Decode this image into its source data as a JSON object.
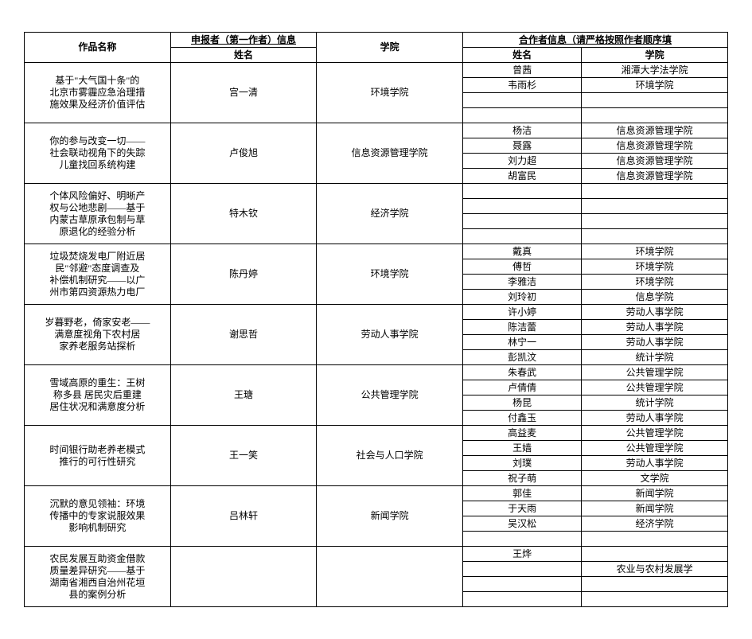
{
  "headers": {
    "work_title": "作品名称",
    "applicant_label": "申报者（第一作者）信息",
    "applicant_name": "姓名",
    "college": "学院",
    "collab_label": "合作者信息（请严格按照作者顺序填",
    "collab_name": "姓名",
    "collab_college": "学院"
  },
  "rows": [
    {
      "title_lines": [
        "基于\"大气国十条\"的",
        "北京市雾霾应急治理措",
        "施效果及经济价值评估"
      ],
      "applicant": "宫一清",
      "college": "环境学院",
      "collaborators": [
        {
          "name": "曾茜",
          "college": "湘潭大学法学院"
        },
        {
          "name": "韦雨杉",
          "college": "环境学院"
        },
        {
          "name": "",
          "college": ""
        },
        {
          "name": "",
          "college": ""
        }
      ]
    },
    {
      "title_lines": [
        "你的参与改变一切——",
        "社会联动视角下的失踪",
        "儿童找回系统构建"
      ],
      "applicant": "卢俊旭",
      "college": "信息资源管理学院",
      "collaborators": [
        {
          "name": "杨洁",
          "college": "信息资源管理学院"
        },
        {
          "name": "聂露",
          "college": "信息资源管理学院"
        },
        {
          "name": "刘力超",
          "college": "信息资源管理学院"
        },
        {
          "name": "胡富民",
          "college": "信息资源管理学院"
        }
      ]
    },
    {
      "title_lines": [
        "个体风险偏好、明晰产",
        "权与公地悲剧——基于",
        "内蒙古草原承包制与草",
        "原退化的经验分析"
      ],
      "applicant": "特木钦",
      "college": "经济学院",
      "collaborators": [
        {
          "name": "",
          "college": ""
        },
        {
          "name": "",
          "college": ""
        },
        {
          "name": "",
          "college": ""
        },
        {
          "name": "",
          "college": ""
        }
      ]
    },
    {
      "title_lines": [
        "垃圾焚烧发电厂附近居",
        "民\"邻避\"态度调查及",
        "补偿机制研究——以广",
        "州市第四资源热力电厂"
      ],
      "applicant": "陈丹婷",
      "college": "环境学院",
      "collaborators": [
        {
          "name": "戴真",
          "college": "环境学院"
        },
        {
          "name": "傅哲",
          "college": "环境学院"
        },
        {
          "name": "李雅洁",
          "college": "环境学院"
        },
        {
          "name": "刘玲初",
          "college": "信息学院"
        }
      ]
    },
    {
      "title_lines": [
        "岁暮野老，倚家安老——",
        "满意度视角下农村居",
        "家养老服务站探析"
      ],
      "applicant": "谢思哲",
      "college": "劳动人事学院",
      "collaborators": [
        {
          "name": "许小婷",
          "college": "劳动人事学院"
        },
        {
          "name": "陈洁蕾",
          "college": "劳动人事学院"
        },
        {
          "name": "林宁一",
          "college": "劳动人事学院"
        },
        {
          "name": "彭凯汶",
          "college": "统计学院"
        }
      ]
    },
    {
      "title_lines": [
        "雪域高原的重生：王树",
        "称多县 居民灾后重建",
        "居住状况和满意度分析"
      ],
      "applicant": "王瑭",
      "college": "公共管理学院",
      "collaborators": [
        {
          "name": "朱春武",
          "college": "公共管理学院"
        },
        {
          "name": "卢倩倩",
          "college": "公共管理学院"
        },
        {
          "name": "杨昆",
          "college": "统计学院"
        },
        {
          "name": "付鑫玉",
          "college": "劳动人事学院"
        }
      ]
    },
    {
      "title_lines": [
        "时间银行助老养老模式",
        "推行的可行性研究"
      ],
      "applicant": "王一笑",
      "college": "社会与人口学院",
      "collaborators": [
        {
          "name": "高益麦",
          "college": "公共管理学院"
        },
        {
          "name": "王嫱",
          "college": "公共管理学院"
        },
        {
          "name": "刘璞",
          "college": "劳动人事学院"
        },
        {
          "name": "祝子萌",
          "college": "文学院"
        }
      ]
    },
    {
      "title_lines": [
        "沉默的意见领袖：环境",
        "传播中的专家说服效果",
        "影响机制研究"
      ],
      "applicant": "吕林轩",
      "college": "新闻学院",
      "collaborators": [
        {
          "name": "郭佳",
          "college": "新闻学院"
        },
        {
          "name": "于天雨",
          "college": "新闻学院"
        },
        {
          "name": "吴汉松",
          "college": "经济学院"
        },
        {
          "name": "",
          "college": ""
        }
      ]
    },
    {
      "title_lines": [
        "农民发展互助资金借款",
        "质量差异研究——基于",
        "湖南省湘西自治州花垣",
        "县的案例分析"
      ],
      "applicant": "",
      "college": "",
      "collaborators": [
        {
          "name": "王烨",
          "college": ""
        },
        {
          "name": "",
          "college": "农业与农村发展学"
        },
        {
          "name": "",
          "college": ""
        },
        {
          "name": "",
          "college": ""
        }
      ]
    }
  ]
}
